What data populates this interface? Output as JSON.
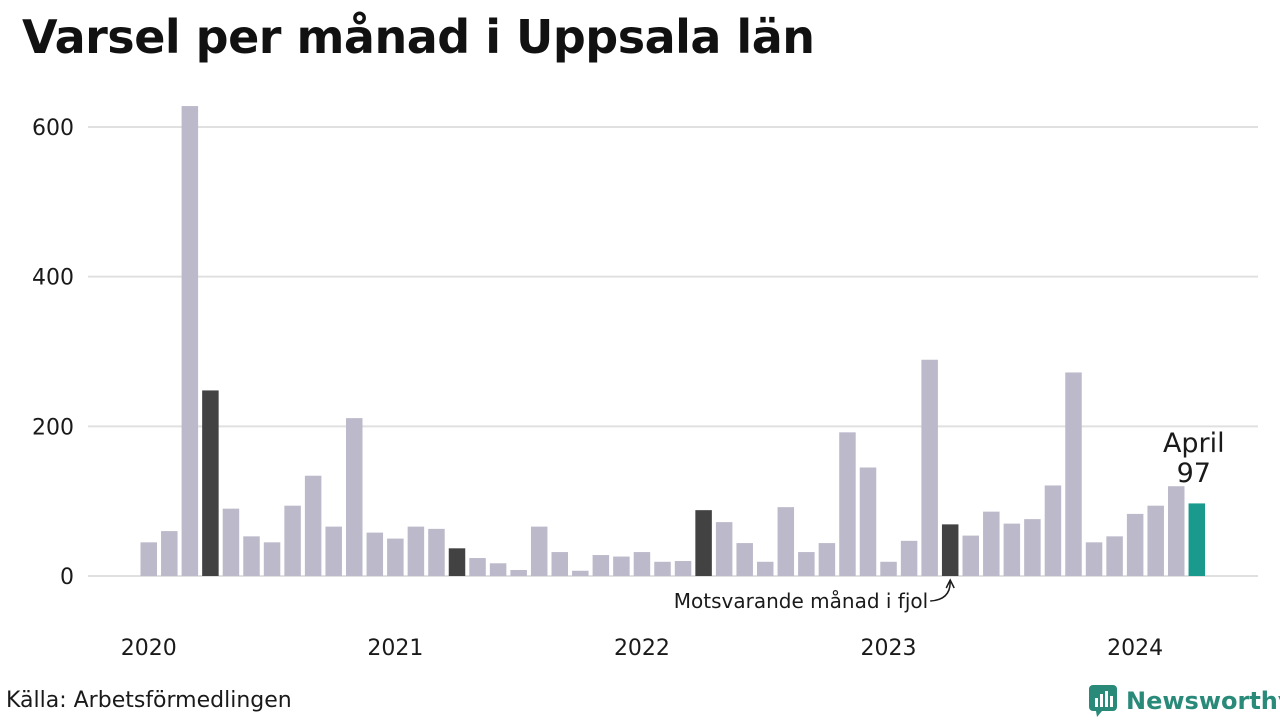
{
  "title": "Varsel per månad i Uppsala län",
  "source": "Källa: Arbetsförmedlingen",
  "logo_text": "Newsworthy",
  "chart_data": {
    "type": "bar",
    "title": "Varsel per månad i Uppsala län",
    "ylim": [
      0,
      650
    ],
    "yticks": [
      0,
      200,
      400,
      600
    ],
    "xtick_labels": [
      "2020",
      "2021",
      "2022",
      "2023",
      "2024"
    ],
    "grid": true,
    "start": "2020-01",
    "values": [
      45,
      60,
      628,
      248,
      90,
      53,
      45,
      94,
      134,
      66,
      211,
      58,
      50,
      66,
      63,
      37,
      24,
      17,
      8,
      66,
      32,
      7,
      28,
      26,
      32,
      19,
      20,
      88,
      72,
      44,
      19,
      92,
      32,
      44,
      192,
      145,
      19,
      47,
      289,
      69,
      54,
      86,
      70,
      76,
      121,
      272,
      45,
      53,
      83,
      94,
      120,
      97
    ],
    "highlight_same_month_indices": [
      3,
      15,
      27,
      39
    ],
    "current_index": 51,
    "colors": {
      "default": "#bcbaca",
      "same_month": "#424242",
      "current": "#1a9a8c",
      "grid": "#e0e0e0"
    },
    "annotations": {
      "current_month": "April",
      "current_value": "97",
      "last_year": "Motsvarande månad i fjol"
    }
  }
}
